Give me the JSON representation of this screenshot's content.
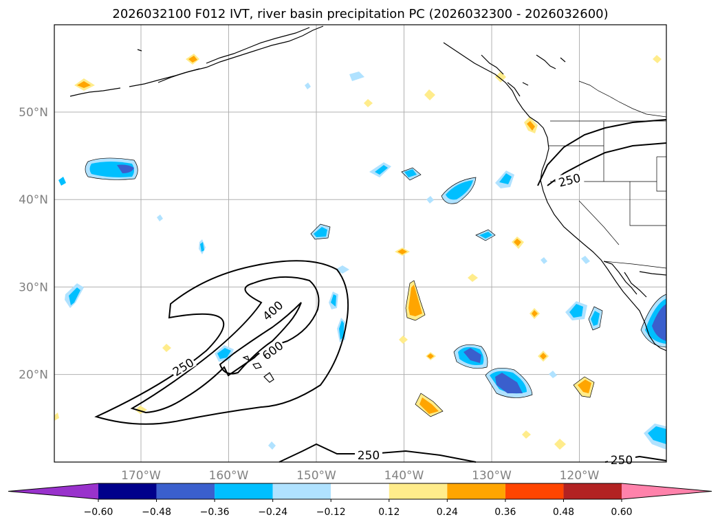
{
  "title": "2026032100 F012 IVT, river basin precipitation PC (2026032300 - 2026032600)",
  "map": {
    "lat_ticks": [
      {
        "lat": 50,
        "label": "50°N"
      },
      {
        "lat": 40,
        "label": "40°N"
      },
      {
        "lat": 30,
        "label": "30°N"
      },
      {
        "lat": 20,
        "label": "20°N"
      }
    ],
    "lon_ticks": [
      {
        "lon": -170,
        "label": "170°W"
      },
      {
        "lon": -160,
        "label": "160°W"
      },
      {
        "lon": -150,
        "label": "150°W"
      },
      {
        "lon": -140,
        "label": "140°W"
      },
      {
        "lon": -130,
        "label": "130°W"
      },
      {
        "lon": -120,
        "label": "120°W"
      }
    ],
    "grid": true,
    "ivt_contour_labels": [
      "250",
      "400",
      "600",
      "250",
      "250",
      "250"
    ]
  },
  "colorbar": {
    "ticks": [
      "−0.60",
      "−0.48",
      "−0.36",
      "−0.24",
      "−0.12",
      "0.12",
      "0.24",
      "0.36",
      "0.48",
      "0.60"
    ],
    "colors": [
      "#9932cc",
      "#00008b",
      "#3a5fcd",
      "#00bfff",
      "#b0e2ff",
      "#ffffff",
      "#ffec8b",
      "#ffa500",
      "#ff4500",
      "#b22222",
      "#ff82ab"
    ],
    "extend": "both"
  }
}
